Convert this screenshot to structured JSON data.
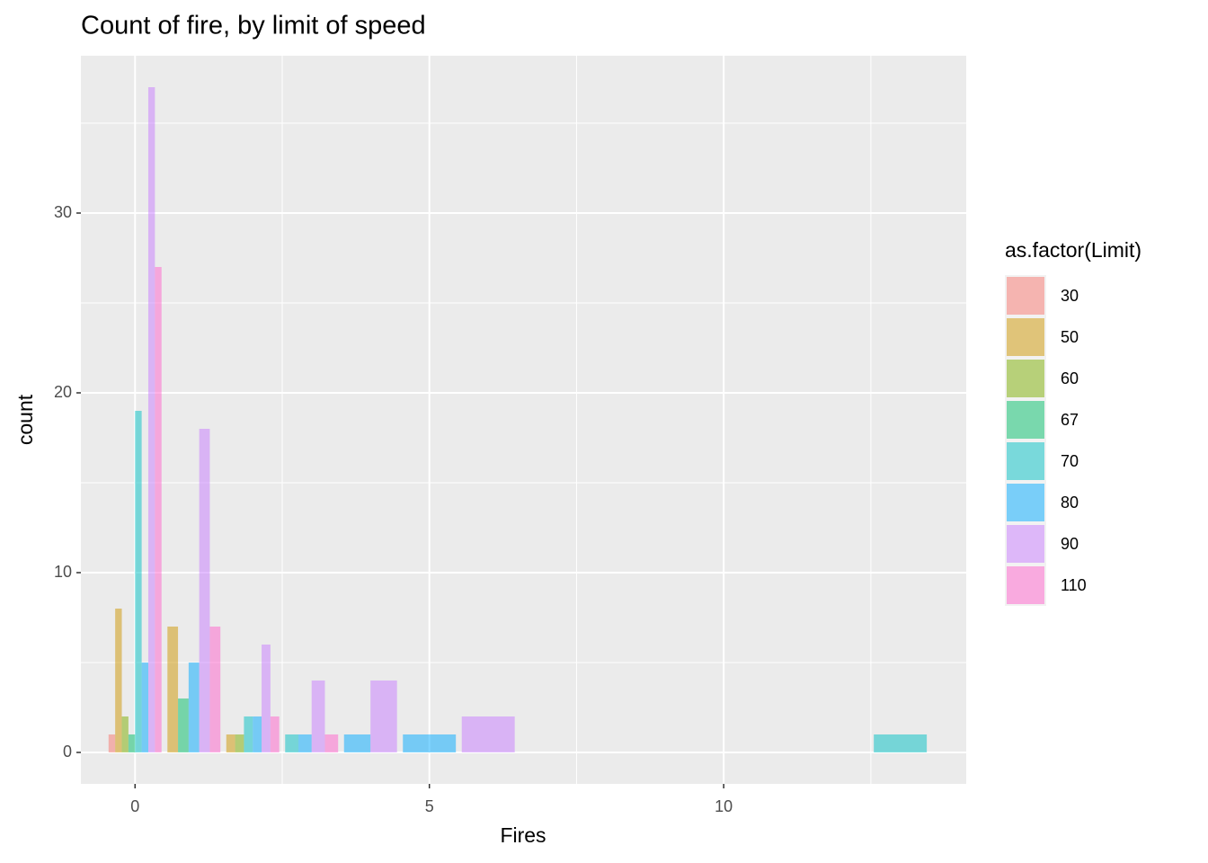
{
  "chart_data": {
    "type": "bar",
    "title": "Count of fire, by limit of speed",
    "x_label": "Fires",
    "y_label": "count",
    "legend_title": "as.factor(Limit)",
    "x": [
      0,
      1,
      2,
      3,
      4,
      5,
      6,
      13
    ],
    "series": [
      {
        "name": "30",
        "color": "#F8766D",
        "values": [
          1,
          null,
          null,
          null,
          null,
          null,
          null,
          null
        ]
      },
      {
        "name": "50",
        "color": "#CD9600",
        "values": [
          8,
          7,
          1,
          null,
          null,
          null,
          null,
          null
        ]
      },
      {
        "name": "60",
        "color": "#7CAE00",
        "values": [
          2,
          null,
          1,
          null,
          null,
          null,
          null,
          null
        ]
      },
      {
        "name": "67",
        "color": "#00BE67",
        "values": [
          1,
          3,
          null,
          null,
          null,
          null,
          null,
          null
        ]
      },
      {
        "name": "70",
        "color": "#00BFC4",
        "values": [
          19,
          null,
          2,
          1,
          null,
          null,
          null,
          1
        ]
      },
      {
        "name": "80",
        "color": "#00A9FF",
        "values": [
          5,
          5,
          2,
          1,
          1,
          1,
          null,
          null
        ]
      },
      {
        "name": "90",
        "color": "#C77CFF",
        "values": [
          37,
          18,
          6,
          4,
          4,
          null,
          2,
          null
        ]
      },
      {
        "name": "110",
        "color": "#FF61CC",
        "values": [
          27,
          7,
          2,
          1,
          null,
          null,
          null,
          null
        ]
      }
    ],
    "xlim": [
      -0.92,
      14.12
    ],
    "ylim": [
      -1.75,
      38.75
    ],
    "xticks": [
      0,
      5,
      10
    ],
    "yticks": [
      0,
      10,
      20,
      30
    ],
    "x_minor_ticks": [
      2.5,
      7.5,
      12.5
    ],
    "y_minor_ticks": [
      5,
      15,
      25,
      35
    ],
    "bar_width": 0.9,
    "opacity": 0.5,
    "grid": true,
    "legend": "right"
  }
}
